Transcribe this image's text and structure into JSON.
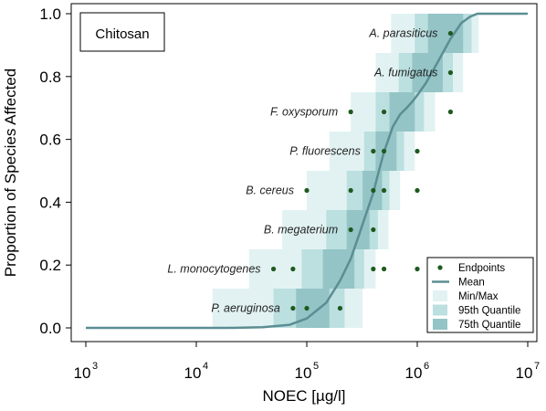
{
  "chart_data": {
    "type": "scatter",
    "title": "Chitosan",
    "xlabel": "NOEC [µg/l]",
    "ylabel": "Proportion of Species Affected",
    "x_scale": "log10",
    "xlim": [
      1000,
      10000000
    ],
    "ylim": [
      0,
      1
    ],
    "x_ticks": [
      {
        "value": 1000,
        "base": "10",
        "exp": "3"
      },
      {
        "value": 10000,
        "base": "10",
        "exp": "4"
      },
      {
        "value": 100000,
        "base": "10",
        "exp": "5"
      },
      {
        "value": 1000000,
        "base": "10",
        "exp": "6"
      },
      {
        "value": 10000000,
        "base": "10",
        "exp": "7"
      }
    ],
    "y_ticks": [
      "0.0",
      "0.2",
      "0.4",
      "0.6",
      "0.8",
      "1.0"
    ],
    "y_tick_values": [
      0,
      0.2,
      0.4,
      0.6,
      0.8,
      1.0
    ],
    "grid": false,
    "legend_position": "bottom-right",
    "legend": [
      {
        "label": "Endpoints",
        "kind": "point",
        "color": "#1e5a1e"
      },
      {
        "label": "Mean",
        "kind": "line",
        "color": "#5b8e93"
      },
      {
        "label": "Min/Max",
        "kind": "box",
        "color": "#e2f2f2"
      },
      {
        "label": "95th Quantile",
        "kind": "box",
        "color": "#bcdfe0"
      },
      {
        "label": "75th Quantile",
        "kind": "box",
        "color": "#94c4c6"
      }
    ],
    "colors": {
      "minmax": "#e2f2f2",
      "q95": "#bcdfe0",
      "q75": "#94c4c6",
      "mean": "#5b8e93",
      "endpoint": "#1e5a1e"
    },
    "species": [
      {
        "name": "P. aeruginosa",
        "y": 0.0625
      },
      {
        "name": "L. monocytogenes",
        "y": 0.1875
      },
      {
        "name": "B. megaterium",
        "y": 0.3125
      },
      {
        "name": "B. cereus",
        "y": 0.4375
      },
      {
        "name": "P. fluorescens",
        "y": 0.5625
      },
      {
        "name": "F. oxysporum",
        "y": 0.6875
      },
      {
        "name": "A. fumigatus",
        "y": 0.8125
      },
      {
        "name": "A. parasiticus",
        "y": 0.9375
      }
    ],
    "endpoints": [
      {
        "x": 75000,
        "y": 0.0625
      },
      {
        "x": 100000,
        "y": 0.0625
      },
      {
        "x": 200000,
        "y": 0.0625
      },
      {
        "x": 50000,
        "y": 0.1875
      },
      {
        "x": 75000,
        "y": 0.1875
      },
      {
        "x": 400000,
        "y": 0.1875
      },
      {
        "x": 500000,
        "y": 0.1875
      },
      {
        "x": 1000000,
        "y": 0.1875
      },
      {
        "x": 250000,
        "y": 0.3125
      },
      {
        "x": 400000,
        "y": 0.3125
      },
      {
        "x": 100000,
        "y": 0.4375
      },
      {
        "x": 250000,
        "y": 0.4375
      },
      {
        "x": 400000,
        "y": 0.4375
      },
      {
        "x": 500000,
        "y": 0.4375
      },
      {
        "x": 1000000,
        "y": 0.4375
      },
      {
        "x": 400000,
        "y": 0.5625
      },
      {
        "x": 500000,
        "y": 0.5625
      },
      {
        "x": 1000000,
        "y": 0.5625
      },
      {
        "x": 250000,
        "y": 0.6875
      },
      {
        "x": 500000,
        "y": 0.6875
      },
      {
        "x": 2000000,
        "y": 0.6875
      },
      {
        "x": 2000000,
        "y": 0.8125
      },
      {
        "x": 2000000,
        "y": 0.9375
      }
    ],
    "bands": [
      {
        "y0": 0.0,
        "y1": 0.125,
        "minmax": [
          14000,
          320000
        ],
        "q95": [
          50000,
          220000
        ],
        "q75": [
          80000,
          160000
        ]
      },
      {
        "y0": 0.125,
        "y1": 0.25,
        "minmax": [
          30000,
          420000
        ],
        "q95": [
          90000,
          330000
        ],
        "q75": [
          140000,
          270000
        ]
      },
      {
        "y0": 0.25,
        "y1": 0.375,
        "minmax": [
          60000,
          550000
        ],
        "q95": [
          150000,
          440000
        ],
        "q75": [
          230000,
          370000
        ]
      },
      {
        "y0": 0.375,
        "y1": 0.5,
        "minmax": [
          100000,
          700000
        ],
        "q95": [
          230000,
          560000
        ],
        "q75": [
          320000,
          480000
        ]
      },
      {
        "y0": 0.5,
        "y1": 0.625,
        "minmax": [
          160000,
          950000
        ],
        "q95": [
          330000,
          760000
        ],
        "q75": [
          420000,
          650000
        ]
      },
      {
        "y0": 0.625,
        "y1": 0.75,
        "minmax": [
          250000,
          1450000
        ],
        "q95": [
          420000,
          1150000
        ],
        "q75": [
          560000,
          950000
        ]
      },
      {
        "y0": 0.75,
        "y1": 0.875,
        "minmax": [
          420000,
          2600000
        ],
        "q95": [
          680000,
          2100000
        ],
        "q75": [
          900000,
          1700000
        ]
      },
      {
        "y0": 0.875,
        "y1": 1.0,
        "minmax": [
          580000,
          3600000
        ],
        "q95": [
          950000,
          3100000
        ],
        "q75": [
          1250000,
          2600000
        ]
      }
    ],
    "mean_curve": [
      {
        "x": 1000,
        "y": 0.0
      },
      {
        "x": 20000,
        "y": 0.0
      },
      {
        "x": 40000,
        "y": 0.002
      },
      {
        "x": 70000,
        "y": 0.01
      },
      {
        "x": 100000,
        "y": 0.03
      },
      {
        "x": 150000,
        "y": 0.08
      },
      {
        "x": 200000,
        "y": 0.15
      },
      {
        "x": 250000,
        "y": 0.22
      },
      {
        "x": 300000,
        "y": 0.3
      },
      {
        "x": 350000,
        "y": 0.37
      },
      {
        "x": 400000,
        "y": 0.43
      },
      {
        "x": 450000,
        "y": 0.5
      },
      {
        "x": 500000,
        "y": 0.56
      },
      {
        "x": 600000,
        "y": 0.64
      },
      {
        "x": 700000,
        "y": 0.68
      },
      {
        "x": 800000,
        "y": 0.7
      },
      {
        "x": 900000,
        "y": 0.72
      },
      {
        "x": 1000000,
        "y": 0.74
      },
      {
        "x": 1200000,
        "y": 0.78
      },
      {
        "x": 1500000,
        "y": 0.84
      },
      {
        "x": 2000000,
        "y": 0.92
      },
      {
        "x": 2500000,
        "y": 0.97
      },
      {
        "x": 3000000,
        "y": 0.99
      },
      {
        "x": 3500000,
        "y": 1.0
      },
      {
        "x": 10000000,
        "y": 1.0
      }
    ]
  }
}
